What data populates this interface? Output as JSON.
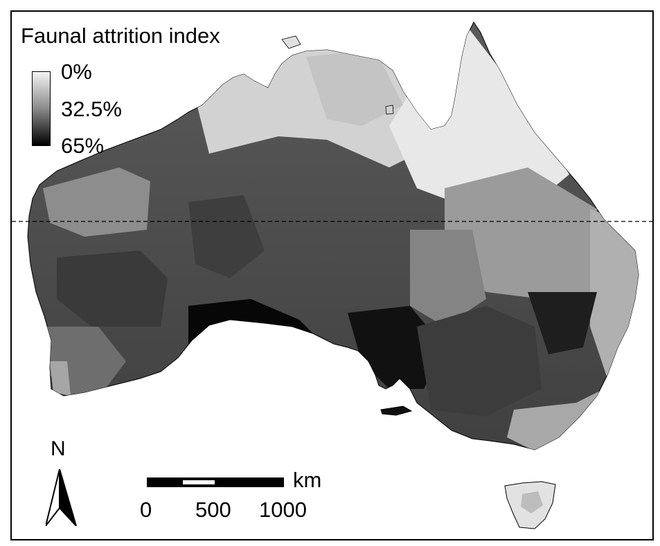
{
  "legend": {
    "title": "Faunal attrition index",
    "min_label": "0%",
    "mid_label": "32.5%",
    "max_label": "65%",
    "ramp_colors": [
      "#f4f4f4",
      "#8a8a8a",
      "#000000"
    ]
  },
  "north_arrow": {
    "label": "N",
    "icon": "north-arrow-icon"
  },
  "scale_bar": {
    "unit": "km",
    "ticks": [
      "0",
      "500",
      "1000"
    ]
  },
  "map": {
    "subject": "Australia",
    "reference_line": "dashed",
    "land_color": "#6f6f6f",
    "sea_color": "#ffffff"
  }
}
